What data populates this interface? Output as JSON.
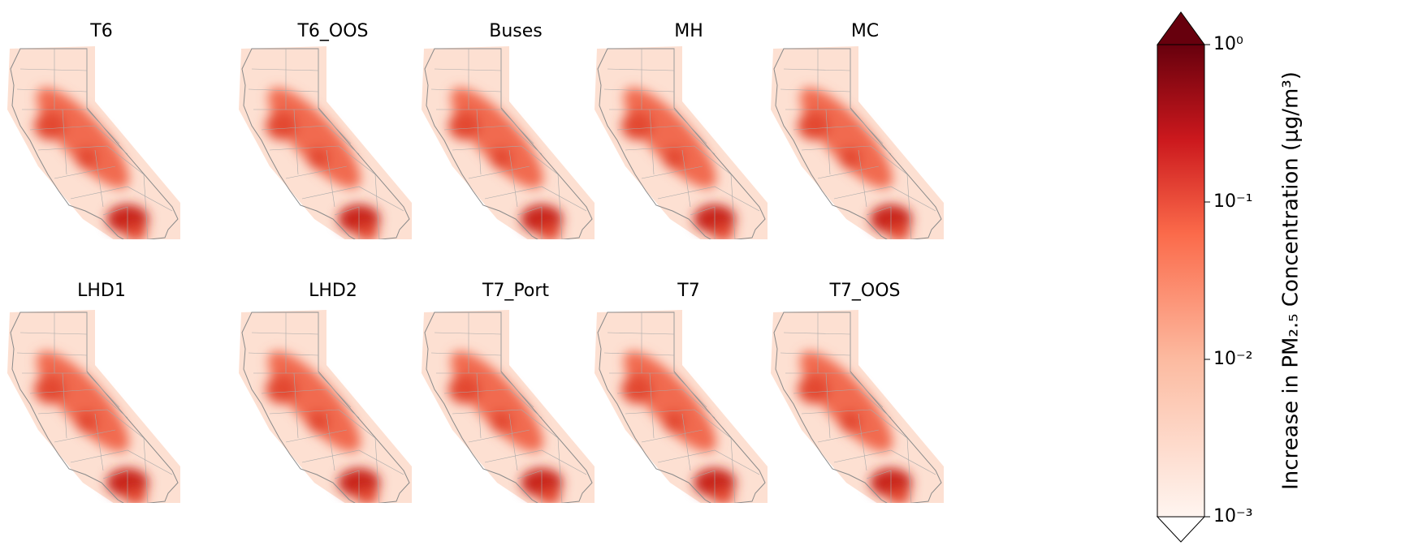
{
  "panels": [
    {
      "title": "T6"
    },
    {
      "title": "T6_OOS"
    },
    {
      "title": "Buses"
    },
    {
      "title": "MH"
    },
    {
      "title": "MC"
    },
    {
      "title": "LHD1"
    },
    {
      "title": "LHD2"
    },
    {
      "title": "T7_Port"
    },
    {
      "title": "T7"
    },
    {
      "title": "T7_OOS"
    }
  ],
  "colorbar": {
    "label": "Increase in PM₂.₅ Concentration (μg/m³)",
    "scale": "log",
    "lim": [
      0.001,
      1
    ],
    "ticks": [
      {
        "value": 1,
        "label": "10⁰"
      },
      {
        "value": 0.1,
        "label": "10⁻¹"
      },
      {
        "value": 0.01,
        "label": "10⁻²"
      },
      {
        "value": 0.001,
        "label": "10⁻³"
      }
    ]
  }
}
